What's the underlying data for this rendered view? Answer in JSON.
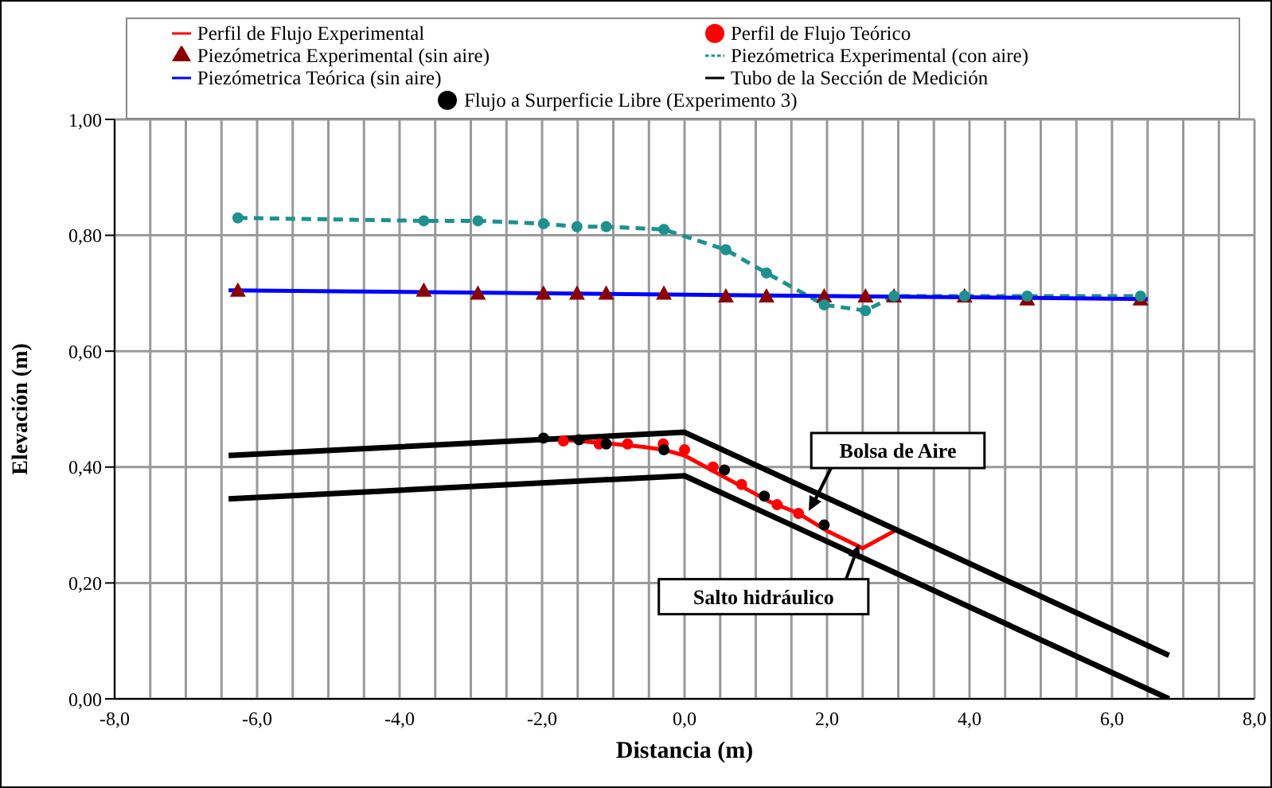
{
  "chart_data": {
    "type": "line",
    "xlabel": "Distancia (m)",
    "ylabel": "Elevación (m)",
    "xlim": [
      -8,
      8
    ],
    "ylim": [
      0,
      1
    ],
    "xticks": [
      {
        "value": -8,
        "label": "-8,0"
      },
      {
        "value": -7.5,
        "label": null
      },
      {
        "value": -7,
        "label": null
      },
      {
        "value": -6.5,
        "label": null
      },
      {
        "value": -6,
        "label": "-6,0"
      },
      {
        "value": -5.5,
        "label": null
      },
      {
        "value": -5,
        "label": null
      },
      {
        "value": -4.5,
        "label": null
      },
      {
        "value": -4,
        "label": "-4,0"
      },
      {
        "value": -3.5,
        "label": null
      },
      {
        "value": -3,
        "label": null
      },
      {
        "value": -2.5,
        "label": null
      },
      {
        "value": -2,
        "label": "-2,0"
      },
      {
        "value": -1.5,
        "label": null
      },
      {
        "value": -1,
        "label": null
      },
      {
        "value": -0.5,
        "label": null
      },
      {
        "value": 0,
        "label": "0,0"
      },
      {
        "value": 0.5,
        "label": null
      },
      {
        "value": 1,
        "label": null
      },
      {
        "value": 1.5,
        "label": null
      },
      {
        "value": 2,
        "label": "2,0"
      },
      {
        "value": 2.5,
        "label": null
      },
      {
        "value": 3,
        "label": null
      },
      {
        "value": 3.5,
        "label": null
      },
      {
        "value": 4,
        "label": "4,0"
      },
      {
        "value": 4.5,
        "label": null
      },
      {
        "value": 5,
        "label": null
      },
      {
        "value": 5.5,
        "label": null
      },
      {
        "value": 6,
        "label": "6,0"
      },
      {
        "value": 6.5,
        "label": null
      },
      {
        "value": 7,
        "label": null
      },
      {
        "value": 7.5,
        "label": null
      },
      {
        "value": 8,
        "label": "8,0"
      }
    ],
    "yticks": [
      {
        "value": 0,
        "label": "0,00"
      },
      {
        "value": 0.2,
        "label": "0,20"
      },
      {
        "value": 0.4,
        "label": "0,40"
      },
      {
        "value": 0.6,
        "label": "0,60"
      },
      {
        "value": 0.8,
        "label": "0,80"
      },
      {
        "value": 1,
        "label": "1,00"
      }
    ],
    "grid": true,
    "legend": "top",
    "series": [
      {
        "name": "Perfil  de Flujo Experimental",
        "color": "#ff0000",
        "marker": "none",
        "x": [
          -2,
          -1.5,
          -1,
          -0.6,
          -0.3,
          0,
          0.3,
          0.6,
          0.9,
          1.2,
          1.6,
          2,
          2.5,
          2.95
        ],
        "values": [
          0.45,
          0.445,
          0.44,
          0.435,
          0.43,
          0.42,
          0.4,
          0.38,
          0.36,
          0.34,
          0.32,
          0.29,
          0.26,
          0.29
        ]
      },
      {
        "name": "Perfil de Flujo Teórico",
        "type": "scatter",
        "color": "#ff0000",
        "marker": "circle",
        "x": [
          -1.7,
          -1.2,
          -0.8,
          -0.3,
          0,
          0.4,
          0.8,
          1.3,
          1.6
        ],
        "values": [
          0.445,
          0.44,
          0.44,
          0.44,
          0.43,
          0.4,
          0.37,
          0.335,
          0.32
        ]
      },
      {
        "name": "Piezómetrica Experimental (sin aire)",
        "type": "scatter",
        "color": "#8b0000",
        "marker": "triangle",
        "x": [
          -6.27,
          -3.66,
          -2.9,
          -1.98,
          -1.51,
          -1.1,
          -0.29,
          0.58,
          1.15,
          1.96,
          2.54,
          2.94,
          3.93,
          4.81,
          6.4
        ],
        "values": [
          0.705,
          0.705,
          0.7,
          0.7,
          0.7,
          0.7,
          0.7,
          0.695,
          0.695,
          0.695,
          0.695,
          0.695,
          0.695,
          0.69,
          0.69
        ]
      },
      {
        "name": "Piezómetrica Experimental (con aire)",
        "color": "#1e9090",
        "marker": "circle",
        "line_style": "dashed",
        "x": [
          -6.27,
          -3.66,
          -2.9,
          -1.98,
          -1.51,
          -1.1,
          -0.29,
          0.58,
          1.15,
          1.96,
          2.54,
          2.94,
          3.93,
          4.81,
          6.4
        ],
        "values": [
          0.83,
          0.825,
          0.825,
          0.82,
          0.815,
          0.815,
          0.81,
          0.775,
          0.735,
          0.68,
          0.67,
          0.695,
          0.695,
          0.695,
          0.695
        ]
      },
      {
        "name": "Piezómetrica Teórica (sin aire)",
        "color": "#0000ff",
        "marker": "none",
        "x": [
          -6.4,
          6.5
        ],
        "values": [
          0.705,
          0.69
        ]
      },
      {
        "name": "Tubo de la Sección de Medición",
        "color": "#000000",
        "marker": "none",
        "x": [
          -6.4,
          0,
          6.8
        ],
        "values": [
          0.42,
          0.46,
          0.075
        ]
      },
      {
        "color": "#000000",
        "marker": "none",
        "x": [
          -6.4,
          0,
          6.8
        ],
        "values": [
          0.345,
          0.385,
          0
        ]
      },
      {
        "name": "Flujo a Surperficie Libre (Experimento 3)",
        "type": "scatter",
        "color": "#000000",
        "marker": "circle",
        "x": [
          -1.98,
          -1.48,
          -1.1,
          -0.29,
          0.56,
          1.12,
          1.96
        ],
        "values": [
          0.45,
          0.447,
          0.44,
          0.43,
          0.395,
          0.35,
          0.3
        ]
      }
    ],
    "annotations": [
      "Bolsa de Aire",
      {
        "text": "Salto hidráulico",
        "x": 2.45,
        "y": 0.267
      }
    ]
  }
}
